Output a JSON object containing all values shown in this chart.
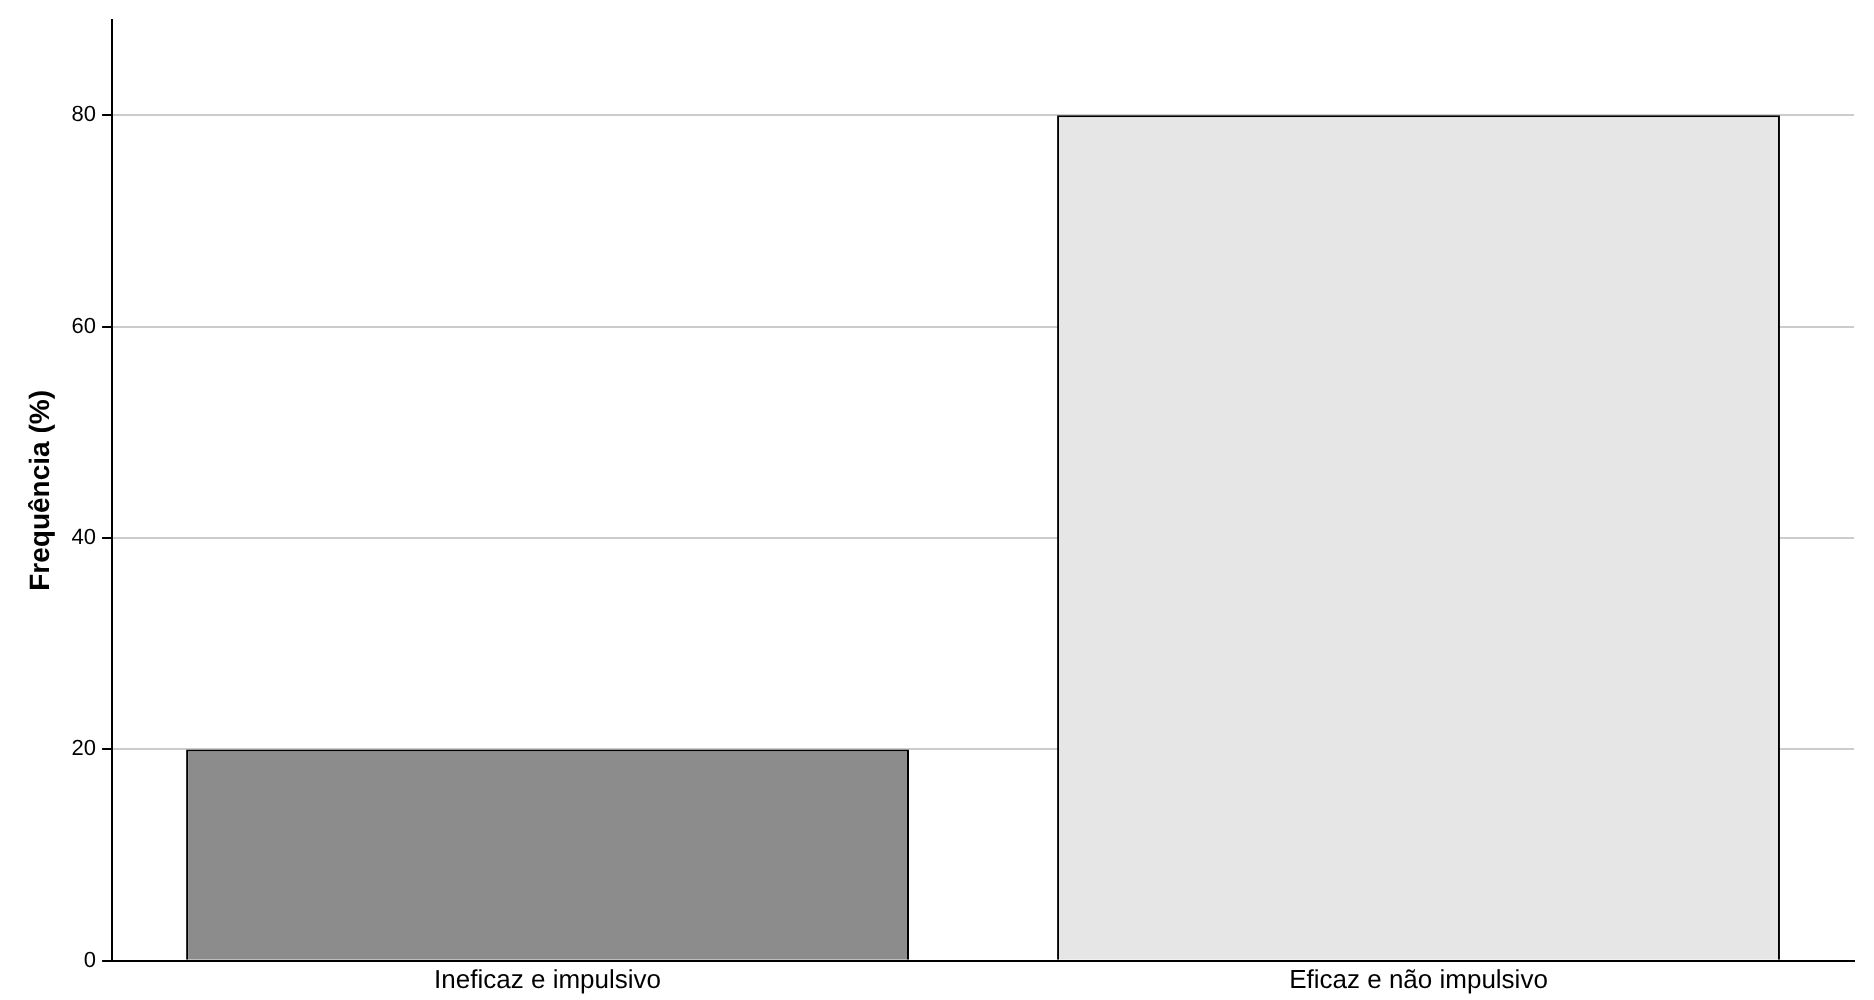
{
  "chart_data": {
    "type": "bar",
    "ylabel": "Frequência (%)",
    "categories": [
      "Ineficaz e impulsivo",
      "Eficaz e não impulsivo"
    ],
    "values": [
      20,
      80
    ],
    "colors": [
      "#8c8c8c",
      "#e6e6e6"
    ],
    "ylim": [
      0,
      89
    ],
    "yticks": [
      0,
      20,
      40,
      60,
      80
    ],
    "grid": "y",
    "legend": false
  }
}
